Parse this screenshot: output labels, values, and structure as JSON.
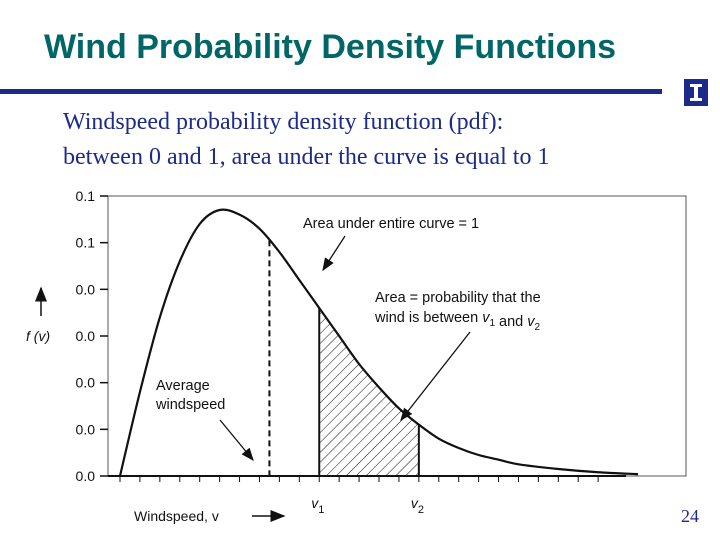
{
  "slide": {
    "title": "Wind Probability Density Functions",
    "body_line1": "Windspeed probability density function (pdf):",
    "body_line2": "between 0 and 1, area under the curve is equal to 1",
    "page_number": "24",
    "logo_icon": "university-block-i-logo",
    "title_color": "#006666",
    "accent_color": "#1c2a8a"
  },
  "chart_data": {
    "type": "line",
    "title": "",
    "xlabel": "Windspeed, v",
    "ylabel": "f (v)",
    "y_tick_labels": [
      "0.1",
      "0.1",
      "0.0",
      "0.0",
      "0.0",
      "0.0",
      "0.0"
    ],
    "x_tick_labels": [
      {
        "label": "v",
        "sub": "1"
      },
      {
        "label": "v",
        "sub": "2"
      }
    ],
    "grid": false,
    "series": [
      {
        "x": [
          0,
          1,
          2,
          3,
          4,
          5,
          6,
          7,
          8,
          9,
          10,
          11,
          12,
          13,
          14,
          15,
          16,
          17,
          18,
          19,
          20,
          22,
          24,
          26
        ],
        "values": [
          0,
          0.018,
          0.034,
          0.046,
          0.054,
          0.057,
          0.056,
          0.053,
          0.048,
          0.042,
          0.036,
          0.03,
          0.024,
          0.019,
          0.0145,
          0.011,
          0.008,
          0.006,
          0.0045,
          0.0035,
          0.0025,
          0.0015,
          0.0008,
          0.0004
        ]
      }
    ],
    "shaded_region": {
      "from": 10,
      "to": 15
    },
    "average_marker": 7.5,
    "annotations": {
      "area_total": "Area under entire curve = 1",
      "area_prob_line1": "Area = probability that the",
      "area_prob_pre": "wind is between ",
      "area_prob_mid": " and ",
      "v_label": "v",
      "v1_sub": "1",
      "v2_sub": "2",
      "average_line1": "Average",
      "average_line2": "windspeed"
    }
  }
}
